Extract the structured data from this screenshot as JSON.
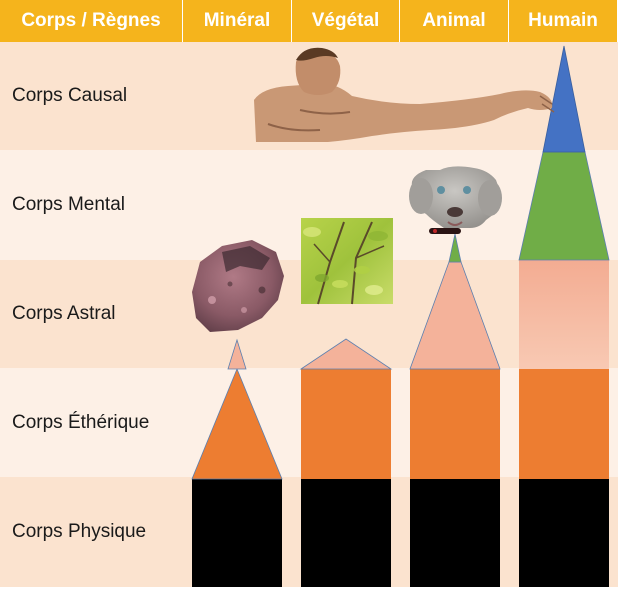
{
  "header": {
    "corner": "Corps / Règnes",
    "columns": [
      "Minéral",
      "Végétal",
      "Animal",
      "Humain"
    ]
  },
  "rows": [
    "Corps Causal",
    "Corps Mental",
    "Corps Astral",
    "Corps Éthérique",
    "Corps Physique"
  ],
  "colors": {
    "header": "#f5b41c",
    "row_dark": "#fbe3cf",
    "row_light": "#fdf0e6",
    "physique": "#000000",
    "etherique": "#ed7d31",
    "astral": "#f4b29a",
    "mental": "#70ad47",
    "causal": "#4472c4"
  },
  "icons": {
    "mineral": "rock-image",
    "vegetal": "leaves-image",
    "animal": "dog-head-image",
    "humain": "adam-arm-image"
  }
}
